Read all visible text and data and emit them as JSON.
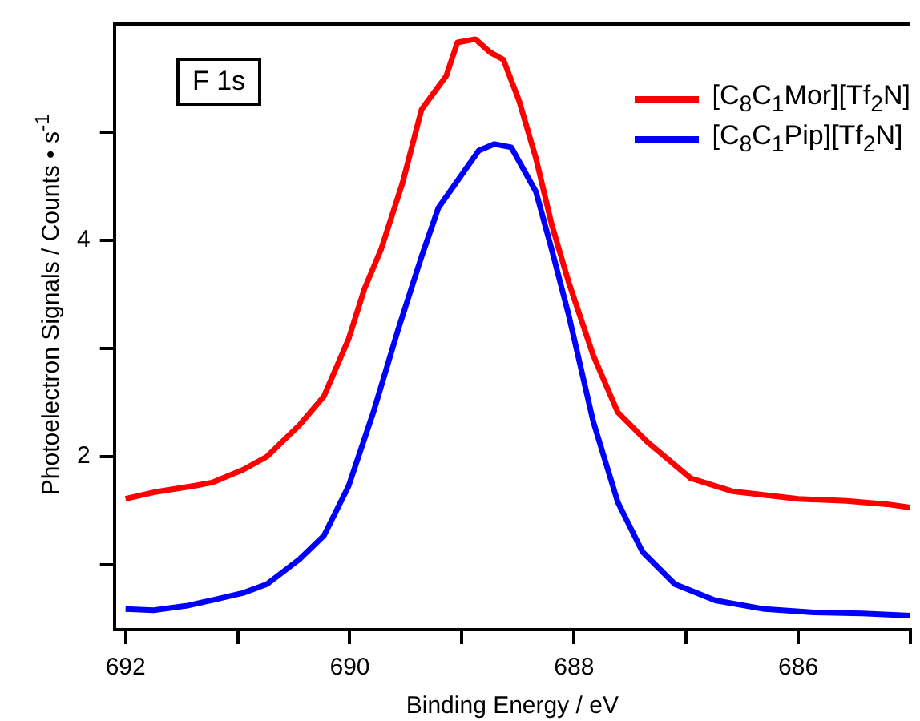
{
  "chart_data": {
    "type": "line",
    "xlabel": "Binding Energy / eV",
    "ylabel": "Photoelectron Signals / Counts • s$^{-1}$",
    "annotations": [
      "F 1s"
    ],
    "xlim": [
      692.1,
      685
    ],
    "xticks": [
      692,
      {
        "value": 691,
        "label": null
      },
      690,
      {
        "value": 689,
        "label": null
      },
      688,
      {
        "value": 687,
        "label": null
      },
      686,
      {
        "value": 685,
        "label": null
      }
    ],
    "ylim": [
      0.4,
      6.0
    ],
    "yticks": [
      {
        "value": 1,
        "label": null
      },
      2,
      {
        "value": 3,
        "label": null
      },
      4,
      {
        "value": 5,
        "label": null
      }
    ],
    "grid": false,
    "legend": "top right",
    "marker": "none",
    "line_style": "solid",
    "series": [
      {
        "name": "[C$_{8}$C$_{1}$Mor][Tf$_{2}$N]",
        "color": "#ff0000",
        "x": [
          692,
          691.75,
          691.39,
          691.23,
          690.95,
          690.74,
          690.45,
          690.23,
          690.01,
          689.87,
          689.72,
          689.53,
          689.36,
          689.14,
          689.04,
          688.88,
          688.75,
          688.63,
          688.49,
          688.34,
          688.2,
          688.05,
          687.83,
          687.61,
          687.35,
          686.96,
          686.59,
          686.0,
          685.57,
          685.21,
          685.0
        ],
        "values": [
          1.61,
          1.67,
          1.73,
          1.76,
          1.88,
          2.0,
          2.29,
          2.56,
          3.09,
          3.55,
          3.92,
          4.53,
          5.21,
          5.52,
          5.83,
          5.86,
          5.74,
          5.67,
          5.29,
          4.76,
          4.15,
          3.62,
          2.94,
          2.41,
          2.14,
          1.8,
          1.68,
          1.61,
          1.59,
          1.56,
          1.53
        ]
      },
      {
        "name": "[C$_{8}$C$_{1}$Pip][Tf$_{2}$N]",
        "color": "#0000ff",
        "x": [
          692,
          691.75,
          691.46,
          691.24,
          690.95,
          690.74,
          690.45,
          690.23,
          690.01,
          689.79,
          689.57,
          689.36,
          689.21,
          689.0,
          688.85,
          688.71,
          688.56,
          688.34,
          688.2,
          688.05,
          687.83,
          687.61,
          687.39,
          687.1,
          686.74,
          686.3,
          685.86,
          685.43,
          685.0
        ],
        "values": [
          0.59,
          0.58,
          0.62,
          0.67,
          0.74,
          0.82,
          1.05,
          1.27,
          1.73,
          2.41,
          3.17,
          3.85,
          4.3,
          4.61,
          4.83,
          4.89,
          4.86,
          4.45,
          3.92,
          3.32,
          2.33,
          1.58,
          1.12,
          0.82,
          0.67,
          0.59,
          0.56,
          0.55,
          0.53
        ]
      }
    ]
  }
}
